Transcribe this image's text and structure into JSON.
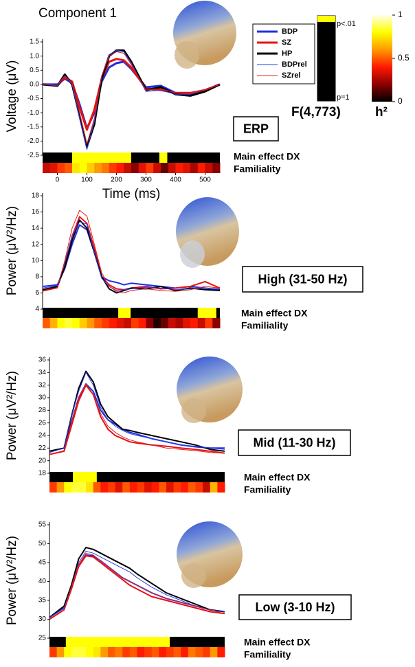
{
  "title": "Component 1",
  "p_colorbar": {
    "top_label": "p<.01",
    "bottom_label": "p=1",
    "title": "F(4,773)",
    "colors": [
      "#000000",
      "#ffff00"
    ]
  },
  "h2_colorbar": {
    "title": "h²",
    "ylim": [
      0,
      1
    ],
    "yticks": [
      0,
      0.5,
      1
    ],
    "colormap": [
      "#000000",
      "#8b0000",
      "#ff1a00",
      "#ff9900",
      "#ffff00",
      "#ffffe8"
    ]
  },
  "chart_data": [
    {
      "type": "line",
      "label": "ERP",
      "ylabel": "Voltage (μV)",
      "xlabel": "Time (ms)",
      "dx_label": "Main effect DX",
      "familiality_label": "Familiality",
      "x": [
        -50,
        0,
        25,
        50,
        75,
        100,
        125,
        150,
        175,
        200,
        225,
        250,
        300,
        350,
        400,
        450,
        500,
        550
      ],
      "xlim": [
        -50,
        550
      ],
      "xticks": [
        0,
        100,
        200,
        300,
        400,
        500
      ],
      "ylim": [
        -2.5,
        1.5
      ],
      "yticks": [
        1.5,
        {
          "value": 1,
          "label": "1.0"
        },
        0.5,
        {
          "value": 0,
          "label": "0.0"
        },
        -0.5,
        {
          "value": -1,
          "label": "-1.0"
        },
        -1.5,
        {
          "value": -2,
          "label": "-2.0"
        },
        -2.5
      ],
      "series": [
        {
          "name": "BDP",
          "color": "#1f2fe0",
          "line_width": 3,
          "values": [
            0,
            0,
            0.2,
            0.05,
            -0.7,
            -1.55,
            -1.0,
            0.1,
            0.6,
            0.75,
            0.8,
            0.55,
            -0.1,
            -0.05,
            -0.3,
            -0.35,
            -0.2,
            0
          ]
        },
        {
          "name": "SZ",
          "color": "#e81010",
          "line_width": 3,
          "values": [
            0,
            -0.05,
            0.25,
            0.1,
            -0.8,
            -1.6,
            -0.9,
            0.2,
            0.8,
            0.9,
            0.85,
            0.6,
            -0.15,
            -0.2,
            -0.3,
            -0.3,
            -0.2,
            0
          ]
        },
        {
          "name": "HP",
          "color": "#000000",
          "line_width": 3,
          "values": [
            0,
            -0.05,
            0.35,
            0,
            -1.1,
            -2.2,
            -1.4,
            0.2,
            1.0,
            1.2,
            1.2,
            0.8,
            -0.2,
            -0.1,
            -0.35,
            -0.4,
            -0.25,
            0
          ]
        },
        {
          "name": "BDPrel",
          "color": "#2a3cf0",
          "line_width": 1,
          "values": [
            0,
            -0.05,
            0.3,
            0,
            -1.2,
            -2.3,
            -1.3,
            0.3,
            1.05,
            1.2,
            1.15,
            0.75,
            -0.25,
            -0.2,
            -0.35,
            -0.35,
            -0.2,
            0
          ]
        },
        {
          "name": "SZrel",
          "color": "#e02020",
          "line_width": 1,
          "values": [
            0,
            0,
            0.3,
            0.05,
            -1.0,
            -2.1,
            -1.2,
            0.3,
            1.0,
            1.15,
            1.1,
            0.7,
            -0.2,
            -0.15,
            -0.3,
            -0.3,
            -0.2,
            0
          ]
        }
      ],
      "dx_segments": [
        [
          50,
          250
        ],
        [
          345,
          372
        ]
      ],
      "familiality": [
        0.3,
        0.35,
        0.45,
        0.5,
        0.75,
        0.8,
        0.7,
        0.6,
        0.55,
        0.45,
        0.4,
        0.3,
        0.2,
        0.35,
        0.45,
        0.3,
        0.15,
        0.3,
        0.4,
        0.35,
        0.25,
        0.4,
        0.3,
        0.2
      ]
    },
    {
      "type": "line",
      "label": "High (31-50 Hz)",
      "ylabel": "Power (μV²/Hz)",
      "dx_label": "Main effect DX",
      "familiality_label": "Familiality",
      "x": [
        -50,
        0,
        25,
        50,
        75,
        100,
        125,
        150,
        175,
        200,
        225,
        250,
        300,
        350,
        400,
        450,
        500,
        550
      ],
      "xlim": [
        -50,
        550
      ],
      "ylim": [
        4,
        18
      ],
      "yticks": [
        4,
        6,
        8,
        10,
        12,
        14,
        16,
        18
      ],
      "series": [
        {
          "name": "BDP",
          "color": "#1f2fe0",
          "line_width": 2,
          "values": [
            6.8,
            7.0,
            9,
            12,
            14.4,
            13.8,
            11,
            8,
            7.5,
            7.3,
            7.0,
            7.2,
            7.0,
            6.8,
            6.6,
            6.8,
            6.6,
            6.4
          ]
        },
        {
          "name": "SZ",
          "color": "#e81010",
          "line_width": 2,
          "values": [
            6.3,
            6.7,
            9.5,
            13,
            15.4,
            14.6,
            11.5,
            8,
            7,
            6.5,
            6.4,
            6.6,
            6.8,
            6.5,
            6.6,
            6.8,
            7.4,
            6.6
          ]
        },
        {
          "name": "HP",
          "color": "#000000",
          "line_width": 2,
          "values": [
            6.4,
            6.8,
            9.2,
            12.5,
            15,
            14,
            11,
            8,
            6.5,
            6.0,
            6.3,
            6.6,
            6.5,
            6.8,
            6.3,
            6.6,
            6.4,
            6.3
          ]
        },
        {
          "name": "BDPrel",
          "color": "#2a3cf0",
          "line_width": 1,
          "values": [
            6.6,
            6.9,
            9.8,
            13,
            14.8,
            14.5,
            11,
            7.8,
            6.8,
            6.3,
            6.4,
            6.5,
            6.7,
            6.6,
            6.4,
            6.5,
            6.6,
            6.5
          ]
        },
        {
          "name": "SZrel",
          "color": "#e02020",
          "line_width": 1,
          "values": [
            6.2,
            6.6,
            10,
            14,
            16.2,
            15.5,
            12,
            8.5,
            6.8,
            6.2,
            6.0,
            6.3,
            6.5,
            6.3,
            6.2,
            6.4,
            6.8,
            6.6
          ]
        }
      ],
      "dx_segments": [
        [
          206,
          248
        ],
        [
          475,
          538
        ]
      ],
      "familiality": [
        0.5,
        0.65,
        0.8,
        0.85,
        0.8,
        0.7,
        0.6,
        0.5,
        0.45,
        0.4,
        0.35,
        0.3,
        0.45,
        0.4,
        0.2,
        0.05,
        0.15,
        0.3,
        0.25,
        0.35,
        0.4,
        0.3,
        0.45,
        0.2
      ]
    },
    {
      "type": "line",
      "label": "Mid (11-30 Hz)",
      "ylabel": "Power (μV²/Hz)",
      "dx_label": "Main effect DX",
      "familiality_label": "Familiality",
      "x": [
        -50,
        0,
        25,
        50,
        75,
        100,
        125,
        150,
        175,
        200,
        225,
        250,
        300,
        350,
        400,
        450,
        500,
        550
      ],
      "xlim": [
        -50,
        550
      ],
      "ylim": [
        18,
        36
      ],
      "yticks": [
        18,
        20,
        22,
        24,
        26,
        28,
        30,
        32,
        34,
        36
      ],
      "series": [
        {
          "name": "BDP",
          "color": "#1f2fe0",
          "line_width": 2,
          "values": [
            21.5,
            22,
            26,
            30,
            32.2,
            31,
            28,
            26.5,
            25.8,
            25,
            24.5,
            24.2,
            23.5,
            23,
            22.5,
            22.2,
            22,
            22
          ]
        },
        {
          "name": "SZ",
          "color": "#e81010",
          "line_width": 2,
          "values": [
            21,
            21.5,
            25.5,
            29.5,
            32,
            30.5,
            27,
            25,
            24,
            23.5,
            23,
            22.8,
            22.5,
            22.3,
            22,
            21.8,
            21.5,
            21.2
          ]
        },
        {
          "name": "HP",
          "color": "#000000",
          "line_width": 2,
          "values": [
            21.5,
            22,
            27,
            31.5,
            34.2,
            32.5,
            29,
            27,
            26,
            25,
            24.8,
            24.5,
            24,
            23.5,
            23,
            22.5,
            21.8,
            21.5
          ]
        },
        {
          "name": "BDPrel",
          "color": "#2a3cf0",
          "line_width": 1,
          "values": [
            21.3,
            22,
            27,
            31,
            34,
            32,
            28.5,
            26.5,
            25.5,
            24.8,
            24.3,
            24,
            23.5,
            23,
            22.5,
            22.3,
            22,
            21.8
          ]
        },
        {
          "name": "SZrel",
          "color": "#e02020",
          "line_width": 1,
          "values": [
            21,
            21.6,
            26,
            30,
            32.2,
            30.5,
            27.5,
            25.5,
            24.5,
            23.8,
            23.3,
            23,
            22.5,
            22,
            21.8,
            21.6,
            21.3,
            21.2
          ]
        }
      ],
      "dx_segments": [
        [
          30,
          112
        ]
      ],
      "familiality": [
        0.45,
        0.6,
        0.8,
        0.85,
        0.85,
        0.75,
        0.5,
        0.4,
        0.45,
        0.35,
        0.5,
        0.4,
        0.45,
        0.35,
        0.4,
        0.5,
        0.35,
        0.45,
        0.4,
        0.5,
        0.45,
        0.3,
        0.65,
        0.4
      ]
    },
    {
      "type": "line",
      "label": "Low (3-10 Hz)",
      "ylabel": "Power (μV²/Hz)",
      "dx_label": "Main effect DX",
      "familiality_label": "Familiality",
      "x": [
        -50,
        0,
        25,
        50,
        75,
        100,
        125,
        150,
        175,
        200,
        225,
        250,
        300,
        350,
        400,
        450,
        500,
        550
      ],
      "xlim": [
        -50,
        550
      ],
      "ylim": [
        25,
        55
      ],
      "yticks": [
        25,
        30,
        35,
        40,
        45,
        50,
        55
      ],
      "series": [
        {
          "name": "BDP",
          "color": "#1f2fe0",
          "line_width": 2,
          "values": [
            30.5,
            33,
            38,
            44,
            47,
            46.8,
            45.5,
            44,
            42.5,
            41,
            40,
            39,
            37,
            35.5,
            34.5,
            33.5,
            32.5,
            32
          ]
        },
        {
          "name": "SZ",
          "color": "#e81010",
          "line_width": 2,
          "values": [
            30,
            32.5,
            38,
            44,
            46.8,
            46.5,
            45,
            43.5,
            42,
            40.5,
            39,
            38,
            36,
            35,
            34,
            33,
            32,
            31.5
          ]
        },
        {
          "name": "HP",
          "color": "#000000",
          "line_width": 2,
          "values": [
            30.5,
            33.5,
            39,
            46,
            49,
            48.5,
            47.5,
            46.5,
            45.5,
            44.5,
            43.5,
            42,
            39.5,
            37,
            35.5,
            34,
            32.5,
            32
          ]
        },
        {
          "name": "BDPrel",
          "color": "#2a3cf0",
          "line_width": 1,
          "values": [
            30.5,
            33,
            38.5,
            45,
            48,
            47.5,
            46.5,
            45.5,
            44.5,
            43.5,
            42.5,
            41,
            38.5,
            36.5,
            35,
            33.5,
            32.5,
            32
          ]
        },
        {
          "name": "SZrel",
          "color": "#e02020",
          "line_width": 1,
          "values": [
            30,
            32.5,
            38.5,
            44.5,
            47.5,
            47,
            45.5,
            44,
            42.5,
            41,
            40,
            39,
            37,
            35.5,
            34.5,
            33.5,
            32.5,
            31.5
          ]
        }
      ],
      "dx_segments": [
        [
          6,
          362
        ]
      ],
      "familiality": [
        0.45,
        0.6,
        0.8,
        0.85,
        0.85,
        0.8,
        0.75,
        0.6,
        0.5,
        0.55,
        0.45,
        0.5,
        0.4,
        0.45,
        0.5,
        0.4,
        0.45,
        0.5,
        0.4,
        0.55,
        0.5,
        0.45,
        0.6,
        0.4
      ]
    }
  ]
}
